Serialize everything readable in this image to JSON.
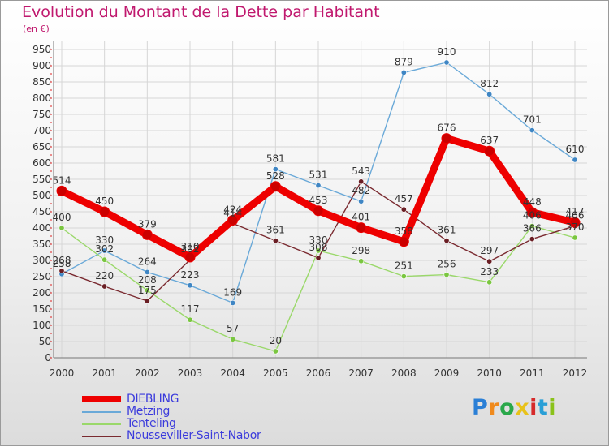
{
  "title": "Evolution du Montant de la Dette par Habitant",
  "unit": "(en €)",
  "brand": {
    "text": "Proxiti",
    "letter_colors": [
      "#2a7fd6",
      "#f08a1c",
      "#2aa84a",
      "#e8c21a",
      "#d62a2a",
      "#2a9fd6",
      "#8ac21a"
    ]
  },
  "chart_data": {
    "type": "line",
    "title": "Evolution du Montant de la Dette par Habitant",
    "subtitle": "(en €)",
    "xlabel": "",
    "ylabel": "",
    "x": [
      "2000",
      "2001",
      "2002",
      "2003",
      "2004",
      "2005",
      "2006",
      "2007",
      "2008",
      "2009",
      "2010",
      "2011",
      "2012"
    ],
    "ylim": [
      0,
      950
    ],
    "yticks": [
      0,
      50,
      100,
      150,
      200,
      250,
      300,
      350,
      400,
      450,
      500,
      550,
      600,
      650,
      700,
      750,
      800,
      850,
      900,
      950
    ],
    "grid": true,
    "legend_position": "bottom-left",
    "series": [
      {
        "name": "Metzing",
        "color": "#6aa9d8",
        "point_color": "#3f86c4",
        "values": [
          258,
          330,
          264,
          223,
          169,
          581,
          531,
          482,
          879,
          910,
          812,
          701,
          610
        ],
        "labels": [
          "258",
          "330",
          "264",
          "223",
          "169",
          "581",
          "531",
          "482",
          "879",
          "910",
          "812",
          "701",
          "610"
        ]
      },
      {
        "name": "Tenteling",
        "color": "#9ad86a",
        "point_color": "#7ac640",
        "values": [
          400,
          302,
          208,
          117,
          57,
          20,
          330,
          298,
          251,
          256,
          233,
          406,
          370
        ],
        "labels": [
          "400",
          "302",
          "208",
          "117",
          "57",
          "20",
          "330",
          "298",
          "251",
          "256",
          "233",
          "406",
          "370"
        ]
      },
      {
        "name": "Nousseviller-Saint-Nabor",
        "color": "#7a2a30",
        "point_color": "#6a1e24",
        "values": [
          268,
          220,
          175,
          302,
          414,
          361,
          308,
          543,
          457,
          361,
          297,
          366,
          406
        ],
        "labels": [
          "268",
          "220",
          "175",
          "302",
          "414",
          "361",
          "308",
          "543",
          "457",
          "361",
          "297",
          "366",
          "406"
        ]
      },
      {
        "name": "DIEBLING",
        "color": "#ee0000",
        "point_color": "#cc0000",
        "values": [
          514,
          450,
          379,
          310,
          424,
          528,
          453,
          401,
          358,
          676,
          637,
          448,
          417
        ],
        "labels": [
          "514",
          "450",
          "379",
          "310",
          "424",
          "528",
          "453",
          "401",
          "358",
          "676",
          "637",
          "448",
          "417"
        ]
      }
    ]
  },
  "legend": {
    "items": [
      {
        "label": "DIEBLING",
        "color": "#ee0000"
      },
      {
        "label": "Metzing",
        "color": "#6aa9d8"
      },
      {
        "label": "Tenteling",
        "color": "#9ad86a"
      },
      {
        "label": "Nousseviller-Saint-Nabor",
        "color": "#7a2a30"
      }
    ]
  }
}
